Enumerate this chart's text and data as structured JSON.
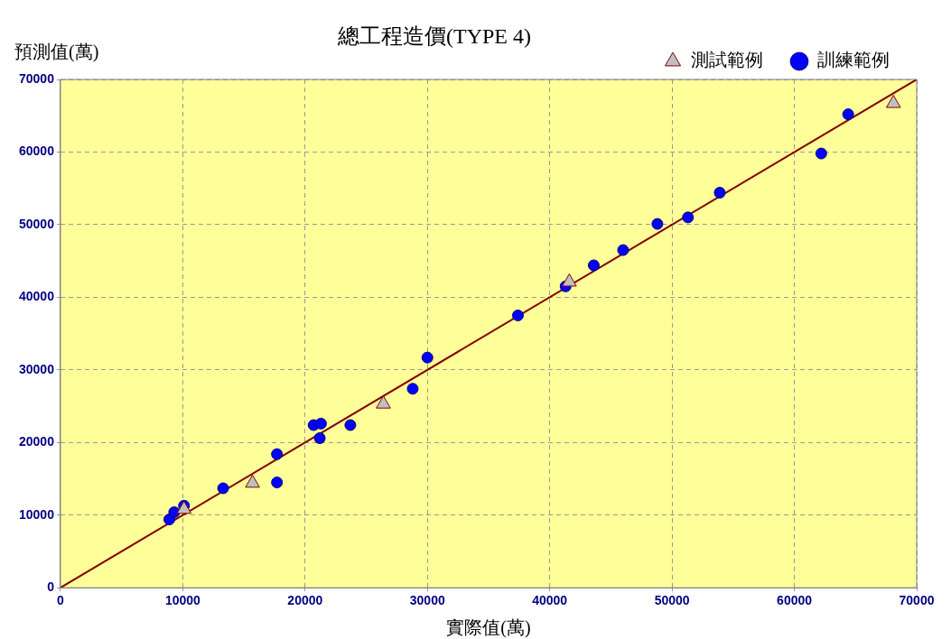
{
  "chart_data": {
    "type": "scatter",
    "title": "總工程造價(TYPE 4)",
    "xlabel": "實際值(萬)",
    "ylabel": "預測值(萬)",
    "xlim": [
      0,
      70000
    ],
    "ylim": [
      0,
      70000
    ],
    "xticks": [
      0,
      10000,
      20000,
      30000,
      40000,
      50000,
      60000,
      70000
    ],
    "yticks": [
      0,
      10000,
      20000,
      30000,
      40000,
      50000,
      60000,
      70000
    ],
    "grid": true,
    "legend": "top right",
    "series": [
      {
        "name": "訓練範例",
        "marker": "circle",
        "color": "#0000ff",
        "x": [
          8900,
          9300,
          10100,
          13300,
          17700,
          17700,
          20700,
          21300,
          21200,
          23700,
          28800,
          30000,
          37400,
          41300,
          43600,
          46000,
          48800,
          51300,
          53900,
          62200,
          64400
        ],
        "values": [
          9400,
          10400,
          11300,
          13700,
          18400,
          14500,
          22400,
          22600,
          20600,
          22400,
          27400,
          31700,
          37500,
          41500,
          44400,
          46500,
          50100,
          51000,
          54400,
          59800,
          65200
        ]
      },
      {
        "name": "測試範例",
        "marker": "triangle",
        "color": "#c0c0c0",
        "x": [
          10100,
          15700,
          26400,
          41600,
          68100
        ],
        "values": [
          10800,
          14400,
          25300,
          42100,
          66700
        ]
      },
      {
        "type": "line",
        "marker": "none",
        "color": "#800000",
        "x": [
          0,
          70000
        ],
        "values": [
          0,
          70000
        ]
      }
    ]
  }
}
